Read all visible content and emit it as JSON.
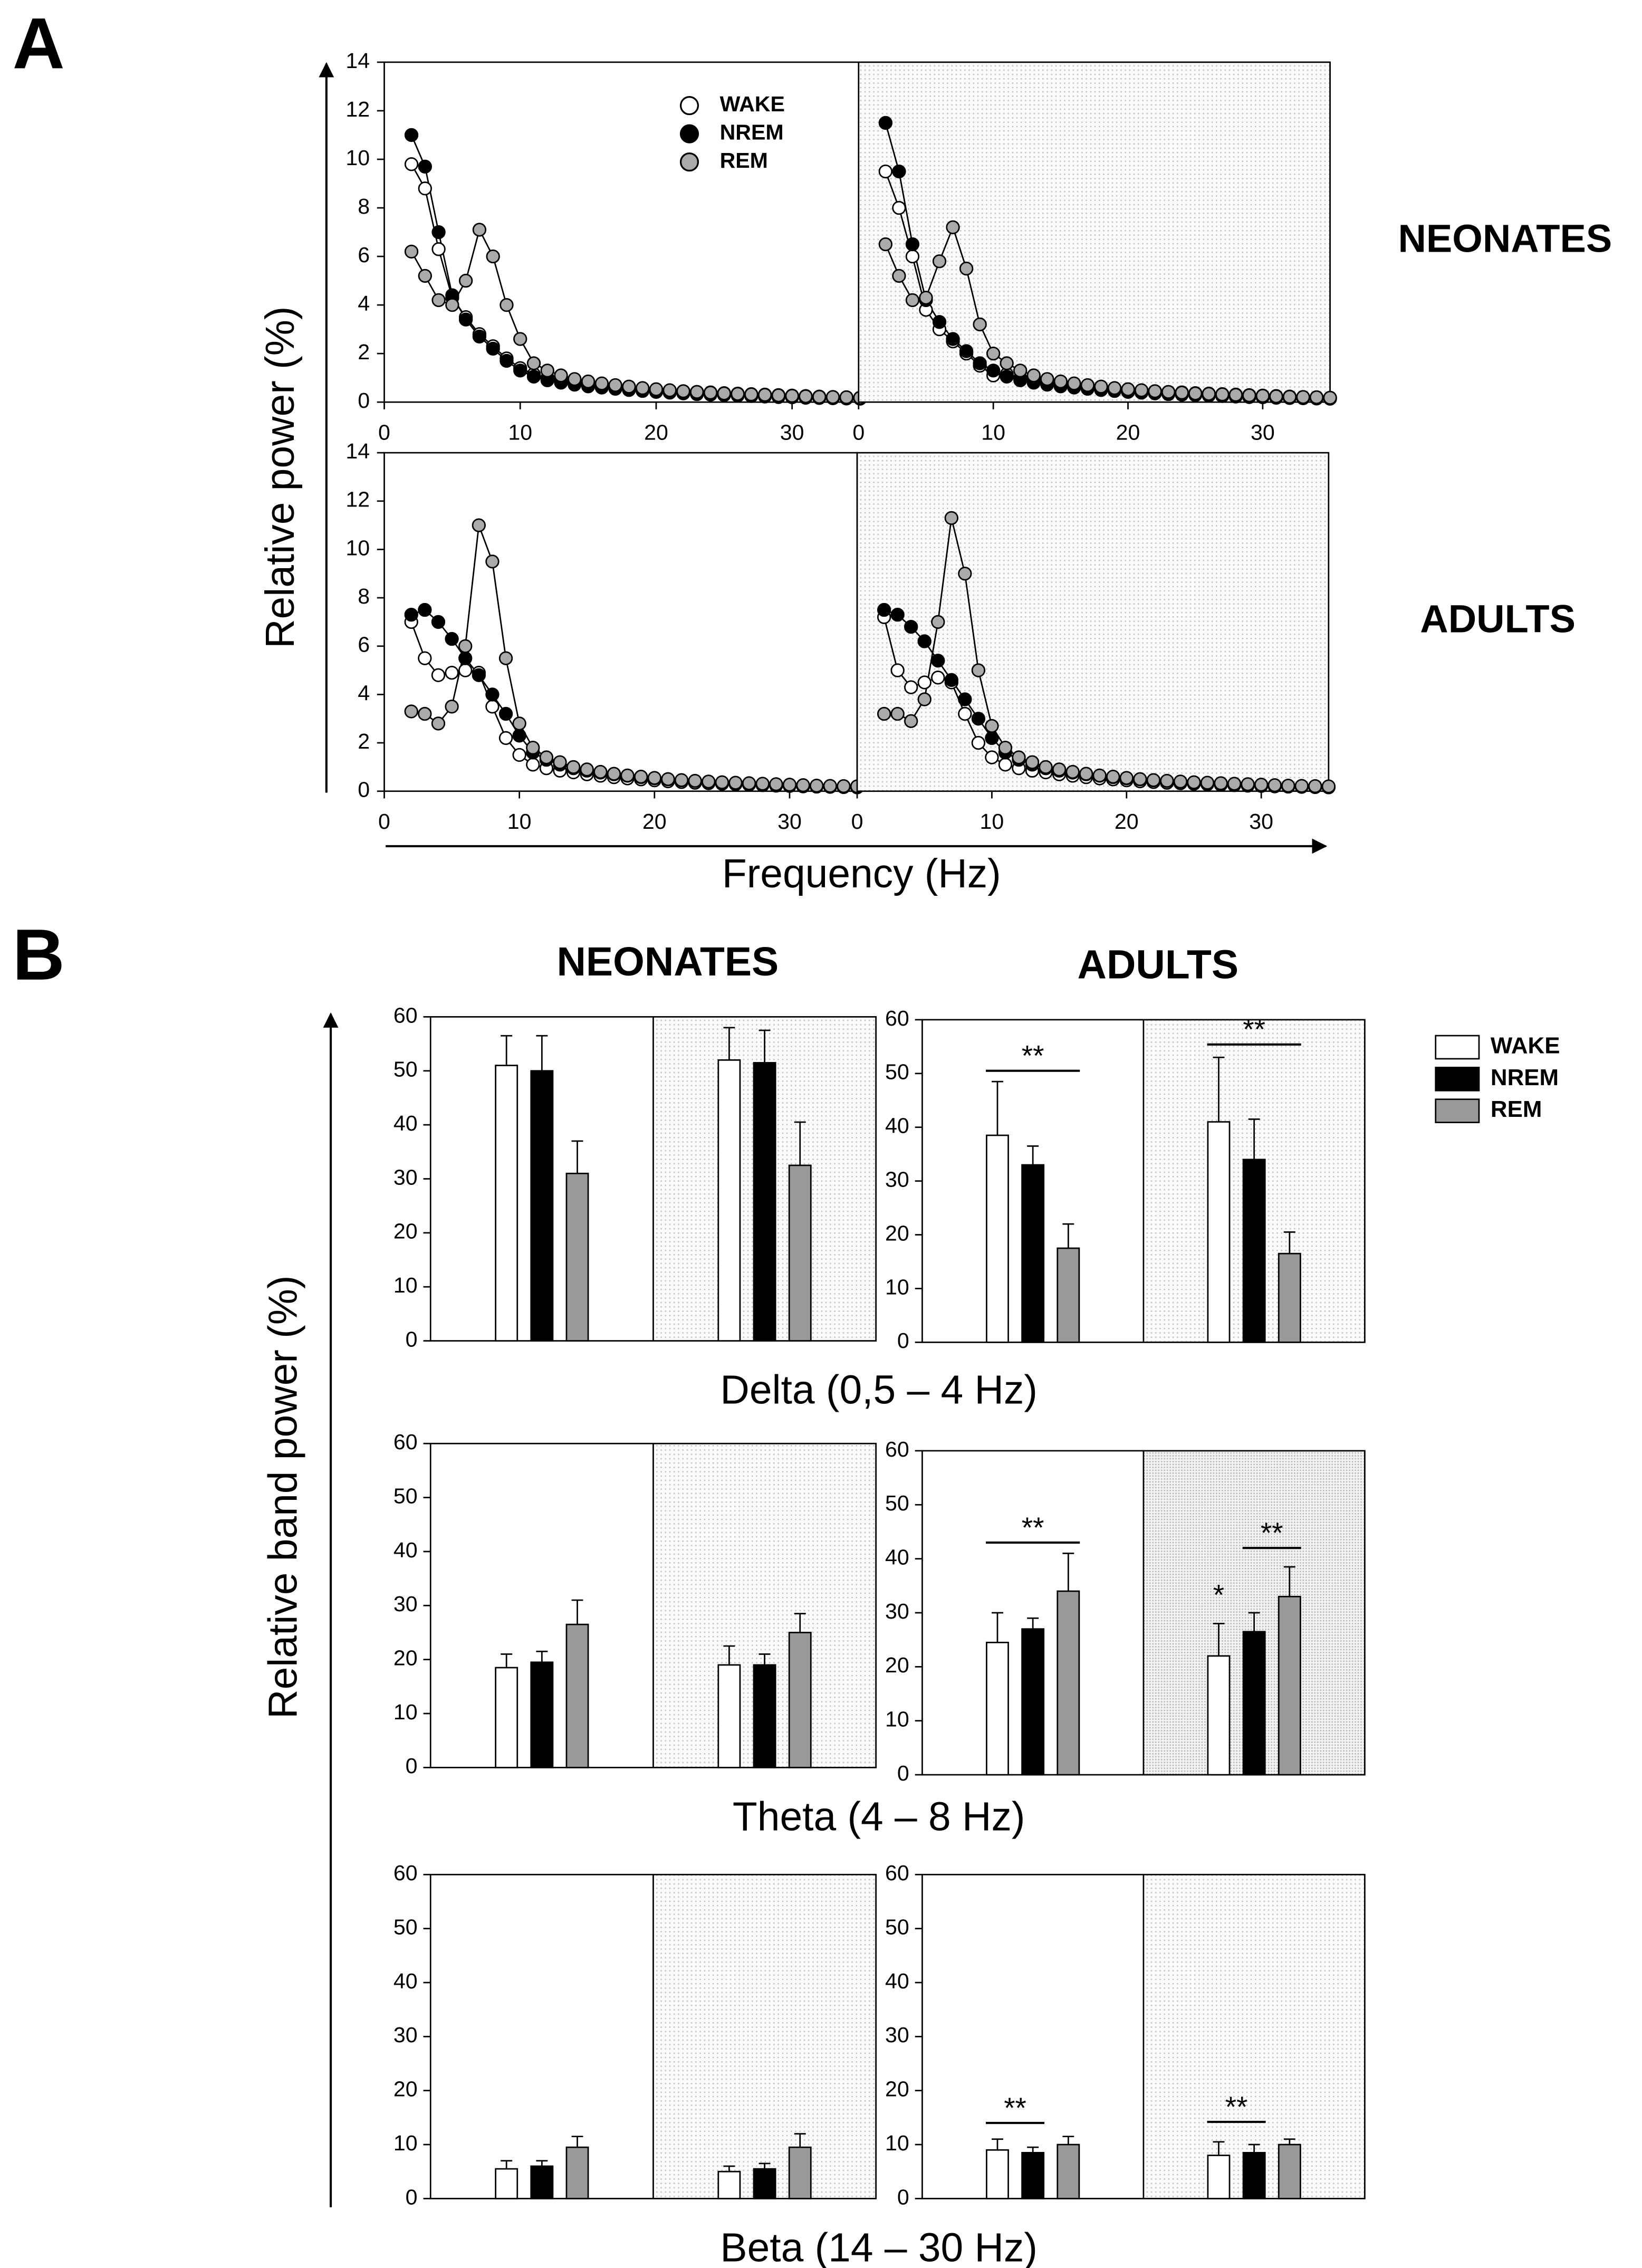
{
  "labels": {
    "panel_a": "A",
    "panel_b": "B",
    "neonates": "NEONATES",
    "adults": "ADULTS",
    "y_a": "Relative power (%)",
    "x_a": "Frequency (Hz)",
    "y_b": "Relative band power (%)"
  },
  "chart_data": [
    {
      "type": "line",
      "xlim": [
        0,
        35
      ],
      "ylim": [
        0,
        14
      ],
      "xticks": [
        0,
        10,
        20,
        30
      ],
      "yticks": [
        0,
        2,
        4,
        6,
        8,
        10,
        12,
        14
      ],
      "x": [
        2,
        3,
        4,
        5,
        6,
        7,
        8,
        9,
        10,
        11,
        12,
        13,
        14,
        15,
        16,
        17,
        18,
        19,
        20,
        21,
        22,
        23,
        24,
        25,
        26,
        27,
        28,
        29,
        30,
        31,
        32,
        33,
        34,
        35
      ],
      "series": [
        {
          "name": "WAKE",
          "color": "#ffffff",
          "values": [
            9.8,
            8.8,
            6.3,
            4.3,
            3.5,
            2.8,
            2.3,
            1.8,
            1.4,
            1.15,
            1.0,
            0.9,
            0.82,
            0.75,
            0.7,
            0.65,
            0.6,
            0.56,
            0.52,
            0.48,
            0.45,
            0.42,
            0.4,
            0.37,
            0.35,
            0.33,
            0.31,
            0.29,
            0.27,
            0.25,
            0.23,
            0.21,
            0.2,
            0.18
          ]
        },
        {
          "name": "NREM",
          "color": "#000000",
          "values": [
            11.0,
            9.7,
            7.0,
            4.4,
            3.4,
            2.7,
            2.2,
            1.7,
            1.3,
            1.05,
            0.9,
            0.8,
            0.72,
            0.65,
            0.6,
            0.55,
            0.5,
            0.46,
            0.42,
            0.39,
            0.36,
            0.33,
            0.31,
            0.29,
            0.27,
            0.25,
            0.23,
            0.21,
            0.2,
            0.18,
            0.17,
            0.16,
            0.15,
            0.14
          ]
        },
        {
          "name": "REM",
          "color": "#aaaaaa",
          "values": [
            6.2,
            5.2,
            4.2,
            4.0,
            5.0,
            7.1,
            6.0,
            4.0,
            2.6,
            1.6,
            1.3,
            1.1,
            0.95,
            0.85,
            0.77,
            0.7,
            0.64,
            0.58,
            0.53,
            0.49,
            0.45,
            0.42,
            0.39,
            0.36,
            0.34,
            0.32,
            0.3,
            0.28,
            0.26,
            0.24,
            0.22,
            0.21,
            0.2,
            0.18
          ]
        }
      ]
    },
    {
      "type": "line",
      "xlim": [
        0,
        35
      ],
      "ylim": [
        0,
        14
      ],
      "xticks": [
        0,
        10,
        20,
        30
      ],
      "x": [
        2,
        3,
        4,
        5,
        6,
        7,
        8,
        9,
        10,
        11,
        12,
        13,
        14,
        15,
        16,
        17,
        18,
        19,
        20,
        21,
        22,
        23,
        24,
        25,
        26,
        27,
        28,
        29,
        30,
        31,
        32,
        33,
        34,
        35
      ],
      "series": [
        {
          "color": "#ffffff",
          "values": [
            9.5,
            8.0,
            6.0,
            3.8,
            3.0,
            2.5,
            2.0,
            1.5,
            1.1,
            1.15,
            1.0,
            0.9,
            0.82,
            0.75,
            0.7,
            0.65,
            0.6,
            0.56,
            0.52,
            0.48,
            0.45,
            0.42,
            0.4,
            0.37,
            0.35,
            0.33,
            0.31,
            0.29,
            0.27,
            0.25,
            0.23,
            0.21,
            0.2,
            0.18
          ]
        },
        {
          "color": "#000000",
          "values": [
            11.5,
            9.5,
            6.5,
            4.2,
            3.3,
            2.6,
            2.1,
            1.6,
            1.3,
            1.05,
            0.9,
            0.8,
            0.72,
            0.65,
            0.6,
            0.55,
            0.5,
            0.46,
            0.42,
            0.39,
            0.36,
            0.33,
            0.31,
            0.29,
            0.27,
            0.25,
            0.23,
            0.21,
            0.2,
            0.18,
            0.17,
            0.16,
            0.15,
            0.14
          ]
        },
        {
          "color": "#aaaaaa",
          "values": [
            6.5,
            5.2,
            4.2,
            4.3,
            5.8,
            7.2,
            5.5,
            3.2,
            2.0,
            1.6,
            1.3,
            1.1,
            0.95,
            0.85,
            0.77,
            0.7,
            0.64,
            0.58,
            0.53,
            0.49,
            0.45,
            0.42,
            0.39,
            0.36,
            0.34,
            0.32,
            0.3,
            0.28,
            0.26,
            0.24,
            0.22,
            0.21,
            0.2,
            0.18
          ]
        }
      ]
    },
    {
      "type": "line",
      "xlim": [
        0,
        35
      ],
      "ylim": [
        0,
        14
      ],
      "xticks": [
        0,
        10,
        20,
        30
      ],
      "yticks": [
        0,
        2,
        4,
        6,
        8,
        10,
        12,
        14
      ],
      "x": [
        2,
        3,
        4,
        5,
        6,
        7,
        8,
        9,
        10,
        11,
        12,
        13,
        14,
        15,
        16,
        17,
        18,
        19,
        20,
        21,
        22,
        23,
        24,
        25,
        26,
        27,
        28,
        29,
        30,
        31,
        32,
        33,
        34,
        35
      ],
      "series": [
        {
          "color": "#ffffff",
          "values": [
            7.0,
            5.5,
            4.8,
            4.9,
            5.0,
            4.9,
            3.5,
            2.2,
            1.5,
            1.1,
            0.95,
            0.85,
            0.78,
            0.7,
            0.64,
            0.58,
            0.53,
            0.49,
            0.45,
            0.41,
            0.38,
            0.35,
            0.33,
            0.31,
            0.29,
            0.27,
            0.25,
            0.23,
            0.22,
            0.2,
            0.19,
            0.18,
            0.17,
            0.16
          ]
        },
        {
          "color": "#000000",
          "values": [
            7.3,
            7.5,
            7.0,
            6.3,
            5.5,
            4.8,
            4.0,
            3.2,
            2.3,
            1.6,
            1.3,
            1.1,
            0.95,
            0.85,
            0.77,
            0.7,
            0.64,
            0.58,
            0.53,
            0.49,
            0.45,
            0.42,
            0.39,
            0.36,
            0.34,
            0.32,
            0.3,
            0.28,
            0.26,
            0.24,
            0.22,
            0.21,
            0.2,
            0.18
          ]
        },
        {
          "color": "#aaaaaa",
          "values": [
            3.3,
            3.2,
            2.8,
            3.5,
            6.0,
            11.0,
            9.5,
            5.5,
            2.8,
            1.8,
            1.4,
            1.2,
            1.0,
            0.9,
            0.8,
            0.72,
            0.65,
            0.6,
            0.55,
            0.5,
            0.46,
            0.43,
            0.4,
            0.37,
            0.35,
            0.33,
            0.31,
            0.29,
            0.27,
            0.25,
            0.23,
            0.22,
            0.21,
            0.2
          ]
        }
      ]
    },
    {
      "type": "line",
      "xlim": [
        0,
        35
      ],
      "ylim": [
        0,
        14
      ],
      "xticks": [
        0,
        10,
        20,
        30
      ],
      "x": [
        2,
        3,
        4,
        5,
        6,
        7,
        8,
        9,
        10,
        11,
        12,
        13,
        14,
        15,
        16,
        17,
        18,
        19,
        20,
        21,
        22,
        23,
        24,
        25,
        26,
        27,
        28,
        29,
        30,
        31,
        32,
        33,
        34,
        35
      ],
      "series": [
        {
          "color": "#ffffff",
          "values": [
            7.2,
            5.0,
            4.3,
            4.5,
            4.7,
            4.5,
            3.2,
            2.0,
            1.4,
            1.1,
            0.95,
            0.85,
            0.78,
            0.7,
            0.64,
            0.58,
            0.53,
            0.49,
            0.45,
            0.41,
            0.38,
            0.35,
            0.33,
            0.31,
            0.29,
            0.27,
            0.25,
            0.23,
            0.22,
            0.2,
            0.19,
            0.18,
            0.17,
            0.16
          ]
        },
        {
          "color": "#000000",
          "values": [
            7.5,
            7.3,
            6.8,
            6.2,
            5.4,
            4.6,
            3.8,
            3.0,
            2.2,
            1.6,
            1.3,
            1.1,
            0.95,
            0.85,
            0.77,
            0.7,
            0.64,
            0.58,
            0.53,
            0.49,
            0.45,
            0.42,
            0.39,
            0.36,
            0.34,
            0.32,
            0.3,
            0.28,
            0.26,
            0.24,
            0.22,
            0.21,
            0.2,
            0.18
          ]
        },
        {
          "color": "#aaaaaa",
          "values": [
            3.2,
            3.2,
            2.9,
            3.8,
            7.0,
            11.3,
            9.0,
            5.0,
            2.7,
            1.8,
            1.4,
            1.2,
            1.0,
            0.9,
            0.8,
            0.72,
            0.65,
            0.6,
            0.55,
            0.5,
            0.46,
            0.43,
            0.4,
            0.37,
            0.35,
            0.33,
            0.31,
            0.29,
            0.27,
            0.25,
            0.23,
            0.22,
            0.21,
            0.2
          ]
        }
      ]
    },
    {
      "type": "bar",
      "title": "NEONATES",
      "xlabel": "Delta (0,5 – 4 Hz)",
      "categories": [
        null,
        null
      ],
      "ylim": [
        0,
        60
      ],
      "yticks": [
        0,
        10,
        20,
        30,
        40,
        50,
        60
      ],
      "series": [
        {
          "color": "#ffffff",
          "values": [
            51,
            52
          ],
          "errors": [
            5.5,
            6
          ]
        },
        {
          "color": "#000000",
          "values": [
            50,
            51.5
          ],
          "errors": [
            6.5,
            6
          ]
        },
        {
          "color": "#999999",
          "values": [
            31,
            32.5
          ],
          "errors": [
            6,
            8
          ]
        }
      ]
    },
    {
      "type": "bar",
      "title": "ADULTS",
      "categories": [
        null,
        null
      ],
      "ylim": [
        0,
        60
      ],
      "yticks": [
        0,
        10,
        20,
        30,
        40,
        50,
        60
      ],
      "series": [
        {
          "name": "WAKE",
          "color": "#ffffff",
          "values": [
            38.5,
            41
          ],
          "errors": [
            10,
            12
          ]
        },
        {
          "name": "NREM",
          "color": "#000000",
          "values": [
            33,
            34
          ],
          "errors": [
            3.5,
            7.5
          ]
        },
        {
          "name": "REM",
          "color": "#999999",
          "values": [
            17.5,
            16.5
          ],
          "errors": [
            4.5,
            4
          ]
        }
      ],
      "annotations": [
        {
          "text": "**",
          "group": 0,
          "span": [
            0,
            2
          ],
          "y": 50.5
        },
        {
          "text": "**",
          "group": 1,
          "span": [
            0,
            2
          ],
          "y": 55.4
        }
      ]
    },
    {
      "type": "bar",
      "xlabel": "Theta (4 – 8 Hz)",
      "categories": [
        null,
        null
      ],
      "ylim": [
        0,
        60
      ],
      "yticks": [
        0,
        10,
        20,
        30,
        40,
        50,
        60
      ],
      "series": [
        {
          "color": "#ffffff",
          "values": [
            18.5,
            19
          ],
          "errors": [
            2.5,
            3.5
          ]
        },
        {
          "color": "#000000",
          "values": [
            19.5,
            19
          ],
          "errors": [
            2,
            2
          ]
        },
        {
          "color": "#999999",
          "values": [
            26.5,
            25
          ],
          "errors": [
            4.5,
            3.5
          ]
        }
      ]
    },
    {
      "type": "bar",
      "categories": [
        null,
        null
      ],
      "ylim": [
        0,
        60
      ],
      "yticks": [
        0,
        10,
        20,
        30,
        40,
        50,
        60
      ],
      "series": [
        {
          "color": "#ffffff",
          "values": [
            24.5,
            22
          ],
          "errors": [
            5.5,
            6
          ]
        },
        {
          "color": "#000000",
          "values": [
            27,
            26.5
          ],
          "errors": [
            2,
            3.5
          ]
        },
        {
          "color": "#999999",
          "values": [
            34,
            33
          ],
          "errors": [
            7,
            5.5
          ]
        }
      ],
      "annotations": [
        {
          "text": "**",
          "group": 0,
          "span": [
            0,
            2
          ],
          "y": 43
        },
        {
          "text": "**",
          "group": 1,
          "span": [
            1,
            2
          ],
          "y": 42
        },
        {
          "text": "*",
          "group": 1,
          "span": [
            0,
            0
          ],
          "y": 30.5
        }
      ]
    },
    {
      "type": "bar",
      "xlabel": "Beta (14 – 30 Hz)",
      "categories": [
        null,
        null
      ],
      "ylim": [
        0,
        60
      ],
      "yticks": [
        0,
        10,
        20,
        30,
        40,
        50,
        60
      ],
      "series": [
        {
          "color": "#ffffff",
          "values": [
            5.5,
            5
          ],
          "errors": [
            1.5,
            1
          ]
        },
        {
          "color": "#000000",
          "values": [
            6,
            5.5
          ],
          "errors": [
            1,
            1
          ]
        },
        {
          "color": "#999999",
          "values": [
            9.5,
            9.5
          ],
          "errors": [
            2,
            2.5
          ]
        }
      ]
    },
    {
      "type": "bar",
      "categories": [
        null,
        null
      ],
      "ylim": [
        0,
        60
      ],
      "yticks": [
        0,
        10,
        20,
        30,
        40,
        50,
        60
      ],
      "series": [
        {
          "color": "#ffffff",
          "values": [
            9,
            8
          ],
          "errors": [
            2,
            2.5
          ]
        },
        {
          "color": "#000000",
          "values": [
            8.5,
            8.5
          ],
          "errors": [
            1,
            1.5
          ]
        },
        {
          "color": "#999999",
          "values": [
            10,
            10
          ],
          "errors": [
            1.5,
            1
          ]
        }
      ],
      "annotations": [
        {
          "text": "**",
          "group": 0,
          "span": [
            0,
            1
          ],
          "y": 14
        },
        {
          "text": "**",
          "group": 1,
          "span": [
            0,
            1
          ],
          "y": 14.2
        }
      ]
    }
  ]
}
